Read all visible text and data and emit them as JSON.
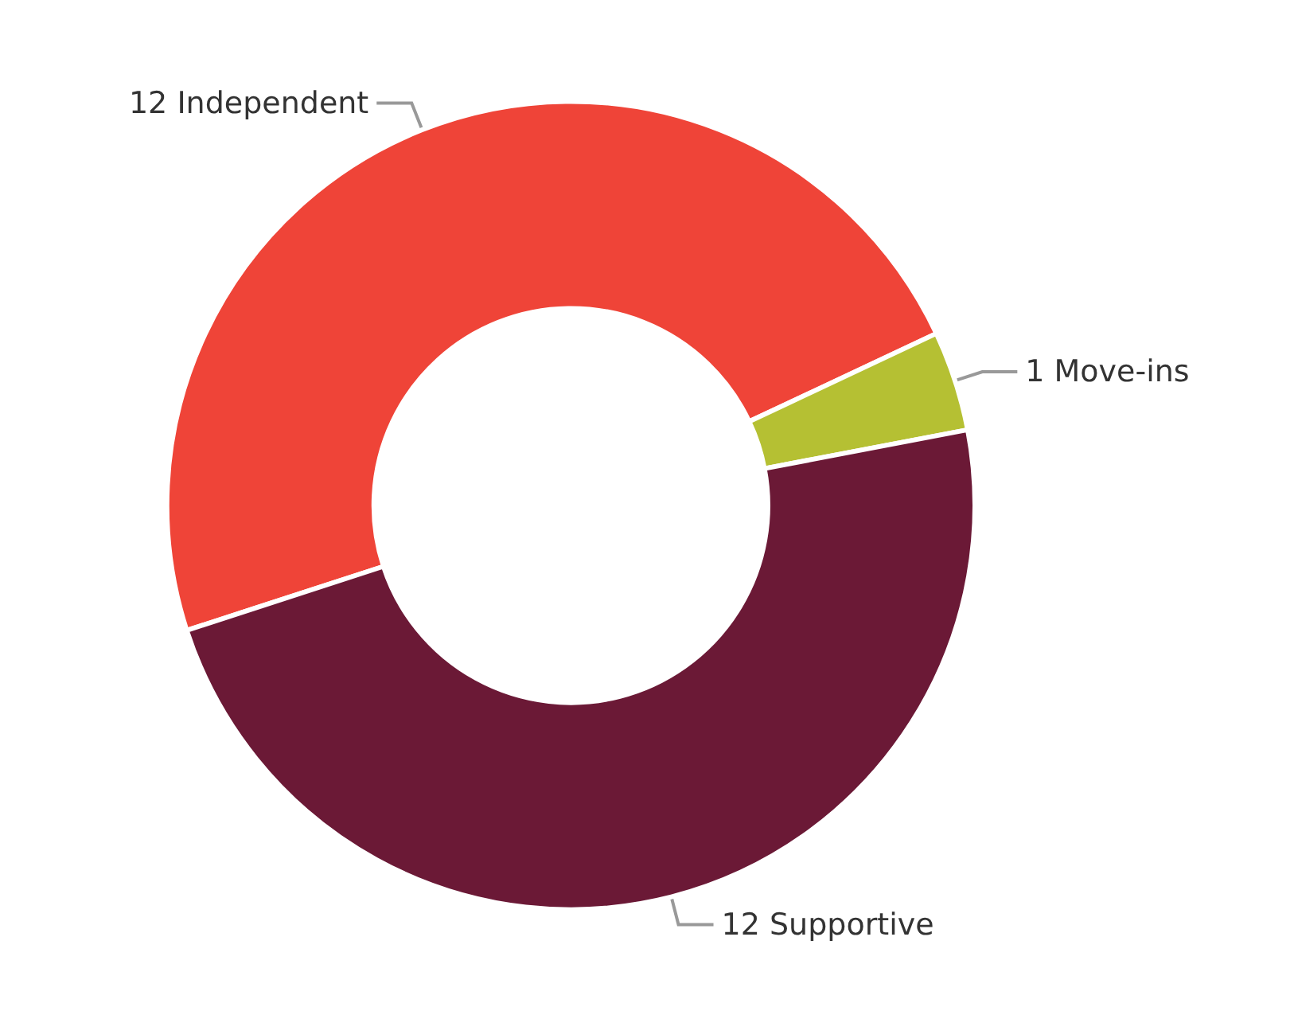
{
  "chart_data": {
    "type": "donut",
    "categories": [
      "Independent",
      "Move-ins",
      "Supportive"
    ],
    "values": [
      12,
      1,
      12
    ],
    "colors": [
      "#ef4438",
      "#b5c033",
      "#6b1936"
    ],
    "data_labels": true,
    "legend": false
  }
}
